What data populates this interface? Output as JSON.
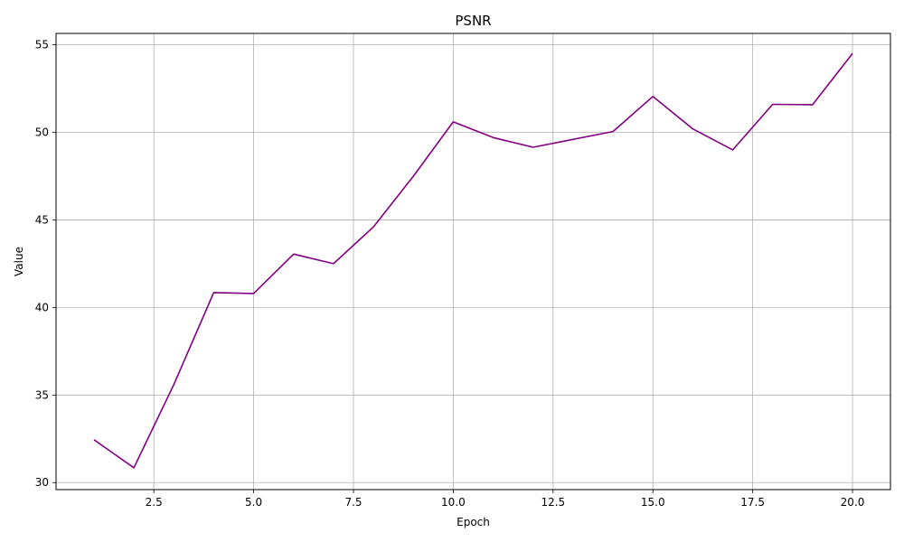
{
  "chart_data": {
    "type": "line",
    "title": "PSNR",
    "xlabel": "Epoch",
    "ylabel": "Value",
    "xlim": [
      0.05,
      20.95
    ],
    "ylim": [
      29.6,
      55.65
    ],
    "xticks": [
      2.5,
      5.0,
      7.5,
      10.0,
      12.5,
      15.0,
      17.5,
      20.0
    ],
    "xtick_labels": [
      "2.5",
      "5.0",
      "7.5",
      "10.0",
      "12.5",
      "15.0",
      "17.5",
      "20.0"
    ],
    "yticks": [
      30,
      35,
      40,
      45,
      50,
      55
    ],
    "ytick_labels": [
      "30",
      "35",
      "40",
      "45",
      "50",
      "55"
    ],
    "grid": true,
    "series": [
      {
        "color": "#800080",
        "x": [
          1,
          2,
          3,
          4,
          5,
          6,
          7,
          8,
          9,
          10,
          11,
          12,
          13,
          14,
          15,
          16,
          17,
          18,
          19,
          20
        ],
        "y": [
          32.45,
          30.85,
          35.6,
          40.85,
          40.8,
          43.05,
          42.5,
          44.6,
          47.5,
          50.6,
          49.7,
          49.15,
          49.6,
          50.05,
          52.05,
          50.2,
          49.0,
          51.6,
          51.58,
          54.5
        ]
      }
    ]
  }
}
